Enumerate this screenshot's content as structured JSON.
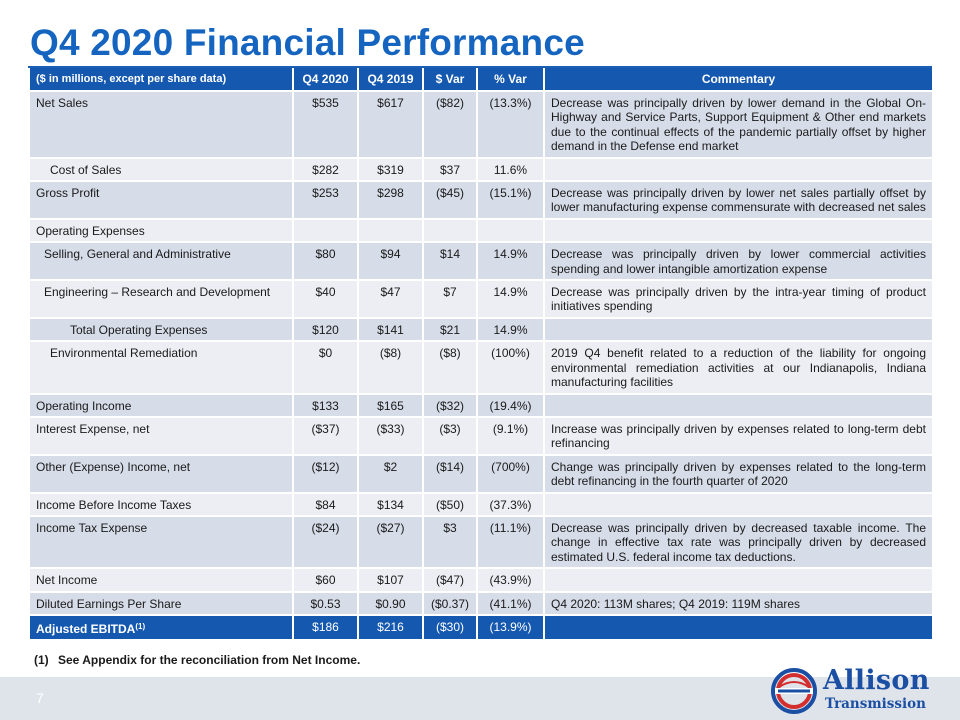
{
  "slide": {
    "title": "Q4 2020 Financial Performance",
    "page_number": "7",
    "footnote_number": "(1)",
    "footnote_text": "See Appendix for the reconciliation from Net Income.",
    "logo": {
      "name": "Allison",
      "subname": "Transmission",
      "colors": {
        "red": "#d32f2f",
        "blue": "#1a4fa3"
      }
    }
  },
  "table": {
    "header": {
      "label": "($ in millions, except per share data)",
      "q4_2020": "Q4 2020",
      "q4_2019": "Q4 2019",
      "dollar_var": "$ Var",
      "pct_var": "% Var",
      "commentary": "Commentary"
    },
    "rows": [
      {
        "label": "Net Sales",
        "q4_2020": "$535",
        "q4_2019": "$617",
        "dollar_var": "($82)",
        "pct_var": "(13.3%)",
        "commentary": "Decrease was principally driven by lower demand in the Global On-Highway and Service Parts, Support Equipment & Other end markets due to the continual effects of the pandemic partially offset by higher demand in the Defense end market"
      },
      {
        "label": "Cost of Sales",
        "q4_2020": "$282",
        "q4_2019": "$319",
        "dollar_var": "$37",
        "pct_var": "11.6%",
        "commentary": ""
      },
      {
        "label": "Gross Profit",
        "q4_2020": "$253",
        "q4_2019": "$298",
        "dollar_var": "($45)",
        "pct_var": "(15.1%)",
        "commentary": "Decrease was principally driven by lower net sales partially offset by lower manufacturing expense commensurate with decreased net sales"
      },
      {
        "label": "Operating Expenses",
        "q4_2020": "",
        "q4_2019": "",
        "dollar_var": "",
        "pct_var": "",
        "commentary": ""
      },
      {
        "label": "Selling, General and Administrative",
        "q4_2020": "$80",
        "q4_2019": "$94",
        "dollar_var": "$14",
        "pct_var": "14.9%",
        "commentary": "Decrease was principally driven by lower commercial activities spending and lower intangible amortization expense"
      },
      {
        "label": "Engineering – Research and Development",
        "q4_2020": "$40",
        "q4_2019": "$47",
        "dollar_var": "$7",
        "pct_var": "14.9%",
        "commentary": "Decrease was principally driven by the intra-year timing of product initiatives spending"
      },
      {
        "label": "Total Operating Expenses",
        "q4_2020": "$120",
        "q4_2019": "$141",
        "dollar_var": "$21",
        "pct_var": "14.9%",
        "commentary": ""
      },
      {
        "label": "Environmental Remediation",
        "q4_2020": "$0",
        "q4_2019": "($8)",
        "dollar_var": "($8)",
        "pct_var": "(100%)",
        "commentary": "2019 Q4 benefit related to a reduction of the liability for ongoing environmental remediation activities at our Indianapolis, Indiana manufacturing facilities"
      },
      {
        "label": "Operating Income",
        "q4_2020": "$133",
        "q4_2019": "$165",
        "dollar_var": "($32)",
        "pct_var": "(19.4%)",
        "commentary": ""
      },
      {
        "label": "Interest Expense, net",
        "q4_2020": "($37)",
        "q4_2019": "($33)",
        "dollar_var": "($3)",
        "pct_var": "(9.1%)",
        "commentary": "Increase was principally driven by expenses related to long-term debt refinancing"
      },
      {
        "label": "Other (Expense) Income, net",
        "q4_2020": "($12)",
        "q4_2019": "$2",
        "dollar_var": "($14)",
        "pct_var": "(700%)",
        "commentary": "Change was principally driven by expenses related to the long-term debt refinancing in the fourth quarter of 2020"
      },
      {
        "label": "Income Before Income Taxes",
        "q4_2020": "$84",
        "q4_2019": "$134",
        "dollar_var": "($50)",
        "pct_var": "(37.3%)",
        "commentary": ""
      },
      {
        "label": "Income Tax Expense",
        "q4_2020": "($24)",
        "q4_2019": "($27)",
        "dollar_var": "$3",
        "pct_var": "(11.1%)",
        "commentary": "Decrease was principally driven by decreased taxable income. The change in effective tax rate was principally driven by decreased estimated U.S. federal income tax deductions."
      },
      {
        "label": "Net Income",
        "q4_2020": "$60",
        "q4_2019": "$107",
        "dollar_var": "($47)",
        "pct_var": "(43.9%)",
        "commentary": ""
      },
      {
        "label": "Diluted Earnings Per Share",
        "q4_2020": "$0.53",
        "q4_2019": "$0.90",
        "dollar_var": "($0.37)",
        "pct_var": "(41.1%)",
        "commentary": "Q4 2020: 113M shares; Q4 2019: 119M shares"
      }
    ],
    "total_row": {
      "label": "Adjusted EBITDA",
      "sup": "(1)",
      "q4_2020": "$186",
      "q4_2019": "$216",
      "dollar_var": "($30)",
      "pct_var": "(13.9%)",
      "commentary": ""
    }
  }
}
